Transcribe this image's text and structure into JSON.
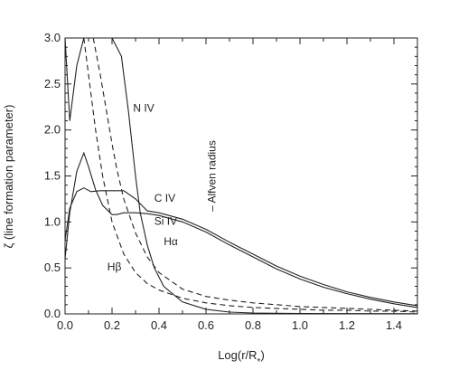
{
  "chart_data": {
    "type": "line",
    "xlabel": "Log(r/R*)",
    "ylabel": "ζ (line formation parameter)",
    "xlim": [
      0.0,
      1.5
    ],
    "ylim": [
      0.0,
      3.0
    ],
    "x_ticks": [
      "0.0",
      "0.2",
      "0.4",
      "0.6",
      "0.8",
      "1.0",
      "1.2",
      "1.4"
    ],
    "y_ticks": [
      "0.0",
      "0.5",
      "1.0",
      "1.5",
      "2.0",
      "2.5",
      "3.0"
    ],
    "grid": false,
    "legend": "none",
    "annotations": [
      {
        "text": "N IV",
        "x": 0.29,
        "y": 2.2
      },
      {
        "text": "C IV",
        "x": 0.38,
        "y": 1.22
      },
      {
        "text": "Si IV",
        "x": 0.38,
        "y": 0.97
      },
      {
        "text": "Hα",
        "x": 0.42,
        "y": 0.75
      },
      {
        "text": "Hβ",
        "x": 0.18,
        "y": 0.47
      },
      {
        "text": "– Alfven radius",
        "x": 0.64,
        "y": 1.5,
        "rotated": true
      }
    ],
    "series": [
      {
        "name": "N IV",
        "style": "solid",
        "x": [
          0.0,
          0.02,
          0.05,
          0.08,
          0.11,
          0.2,
          0.24,
          0.27,
          0.3,
          0.32,
          0.35,
          0.38,
          0.42,
          0.5,
          0.6,
          0.7,
          0.8,
          1.0,
          1.2,
          1.5
        ],
        "y": [
          3.0,
          2.1,
          2.7,
          3.0,
          3.0,
          3.0,
          2.8,
          2.2,
          1.5,
          1.1,
          0.75,
          0.5,
          0.3,
          0.13,
          0.05,
          0.02,
          0.01,
          0.005,
          0.003,
          0.002
        ]
      },
      {
        "name": "C IV",
        "style": "solid",
        "x": [
          0.0,
          0.02,
          0.05,
          0.08,
          0.11,
          0.15,
          0.2,
          0.25,
          0.3,
          0.35,
          0.4,
          0.5,
          0.6,
          0.7,
          0.8,
          0.9,
          1.0,
          1.1,
          1.2,
          1.3,
          1.4,
          1.5
        ],
        "y": [
          0.8,
          1.15,
          1.33,
          1.37,
          1.33,
          1.34,
          1.34,
          1.34,
          1.25,
          1.12,
          1.1,
          1.03,
          0.92,
          0.78,
          0.65,
          0.52,
          0.41,
          0.32,
          0.24,
          0.18,
          0.13,
          0.09
        ]
      },
      {
        "name": "Si IV",
        "style": "solid",
        "x": [
          0.0,
          0.02,
          0.05,
          0.08,
          0.1,
          0.13,
          0.16,
          0.2,
          0.22,
          0.25,
          0.3,
          0.35,
          0.4,
          0.5,
          0.6,
          0.7,
          0.8,
          0.9,
          1.0,
          1.1,
          1.2,
          1.3,
          1.4,
          1.5
        ],
        "y": [
          0.6,
          1.1,
          1.55,
          1.75,
          1.6,
          1.35,
          1.18,
          1.08,
          1.08,
          1.1,
          1.1,
          1.09,
          1.07,
          1.0,
          0.89,
          0.75,
          0.62,
          0.49,
          0.38,
          0.29,
          0.22,
          0.16,
          0.11,
          0.07
        ]
      },
      {
        "name": "Hα",
        "style": "dashed",
        "x": [
          0.12,
          0.15,
          0.18,
          0.2,
          0.22,
          0.25,
          0.3,
          0.35,
          0.4,
          0.5,
          0.6,
          0.7,
          0.8,
          0.9,
          1.0,
          1.1,
          1.2,
          1.3,
          1.4,
          1.5
        ],
        "y": [
          3.0,
          2.6,
          2.15,
          1.85,
          1.58,
          1.25,
          0.88,
          0.62,
          0.45,
          0.27,
          0.19,
          0.15,
          0.12,
          0.1,
          0.08,
          0.07,
          0.06,
          0.05,
          0.04,
          0.03
        ]
      },
      {
        "name": "Hβ",
        "style": "dashed",
        "x": [
          0.08,
          0.1,
          0.13,
          0.16,
          0.2,
          0.25,
          0.3,
          0.35,
          0.4,
          0.5,
          0.6,
          0.7,
          0.8,
          0.9,
          1.0,
          1.1,
          1.2,
          1.3,
          1.4,
          1.5
        ],
        "y": [
          3.0,
          2.6,
          2.0,
          1.5,
          1.0,
          0.65,
          0.45,
          0.33,
          0.26,
          0.17,
          0.12,
          0.09,
          0.07,
          0.06,
          0.05,
          0.04,
          0.04,
          0.03,
          0.03,
          0.02
        ]
      }
    ]
  }
}
